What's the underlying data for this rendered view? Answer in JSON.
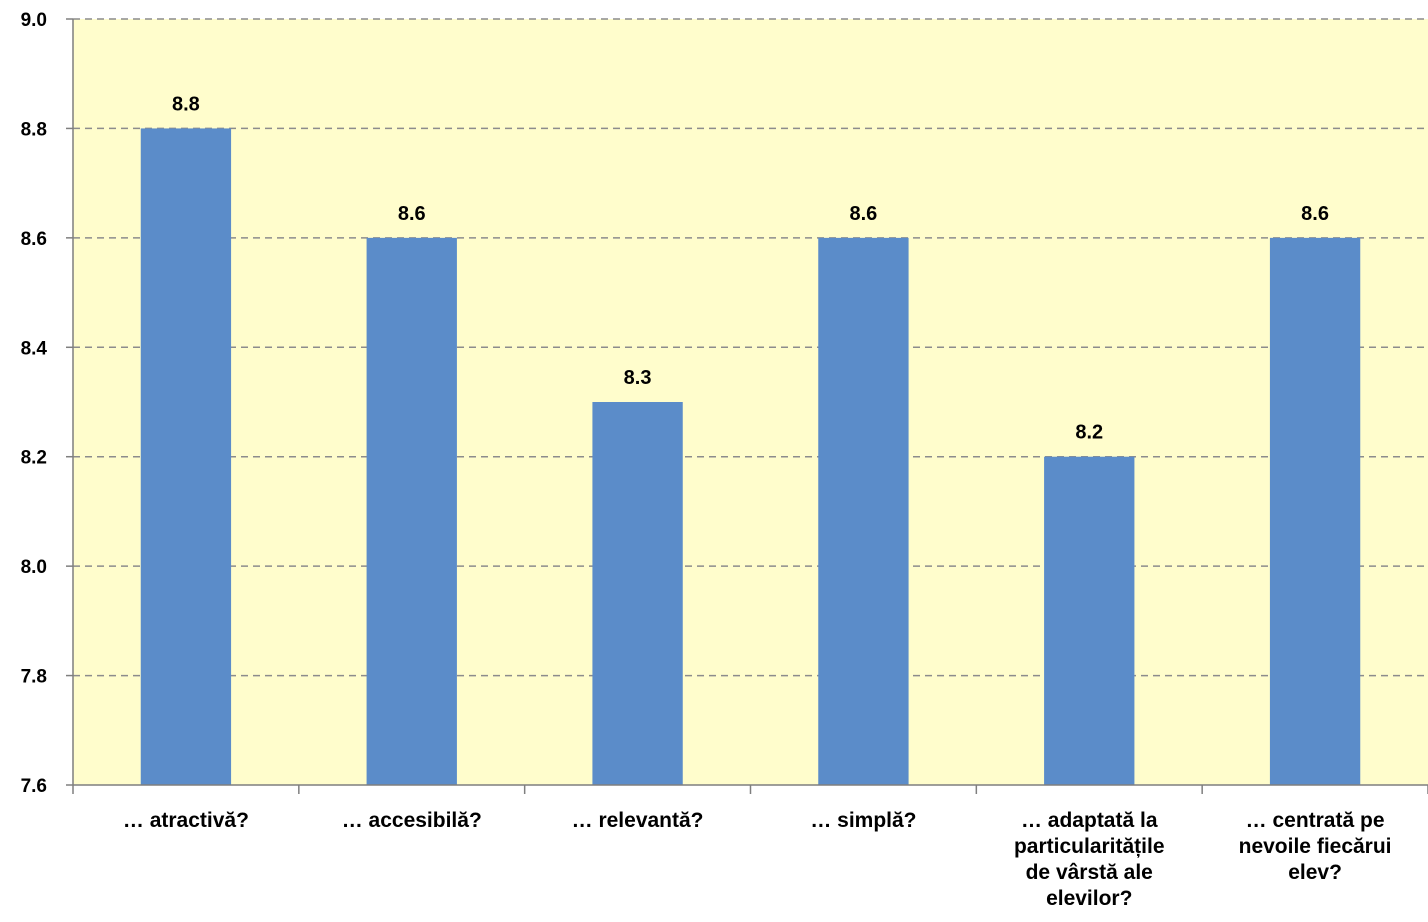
{
  "chart_data": {
    "type": "bar",
    "categories": [
      [
        "… atractivă?"
      ],
      [
        "… accesibilă?"
      ],
      [
        "… relevantă?"
      ],
      [
        "… simplă?"
      ],
      [
        "… adaptată la",
        "particularitățile",
        "de vârstă ale",
        "elevilor?"
      ],
      [
        "… centrată pe",
        "nevoile fiecărui",
        "elev?"
      ]
    ],
    "values": [
      8.8,
      8.6,
      8.3,
      8.6,
      8.2,
      8.6
    ],
    "data_labels": [
      "8.8",
      "8.6",
      "8.3",
      "8.6",
      "8.2",
      "8.6"
    ],
    "ylim": [
      7.6,
      9.0
    ],
    "yticks": [
      "7.6",
      "7.8",
      "8.0",
      "8.2",
      "8.4",
      "8.6",
      "8.8",
      "9.0"
    ],
    "grid": true,
    "legend": "none",
    "colors": {
      "bar": "#5b8cc9",
      "plot_background": "#fffdcc",
      "grid": "#8c8c8c",
      "axis": "#7f7f7f"
    }
  }
}
